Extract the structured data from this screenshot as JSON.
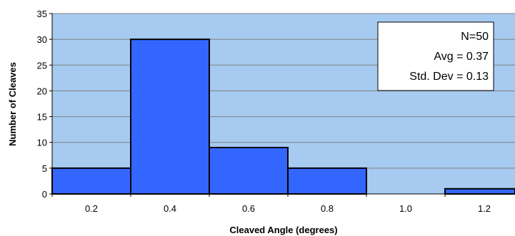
{
  "chart_data": {
    "type": "bar",
    "categories": [
      "0.2",
      "0.4",
      "0.6",
      "0.8",
      "1.0",
      "1.2"
    ],
    "values": [
      5,
      30,
      9,
      5,
      0,
      1
    ],
    "xlabel": "Cleaved Angle (degrees)",
    "ylabel": "Number of Cleaves",
    "ylim": [
      0,
      35
    ],
    "yticks": [
      0,
      5,
      10,
      15,
      20,
      25,
      30,
      35
    ],
    "grid": true,
    "legend": "none",
    "annotation": [
      "N=50",
      "Avg = 0.37",
      "Std. Dev = 0.13"
    ],
    "colors": {
      "plot_background": "#a6caf0",
      "bar_fill": "#3366ff",
      "bar_stroke": "#000000",
      "gridline": "#808080",
      "annotation_box": "#ffffff"
    }
  }
}
